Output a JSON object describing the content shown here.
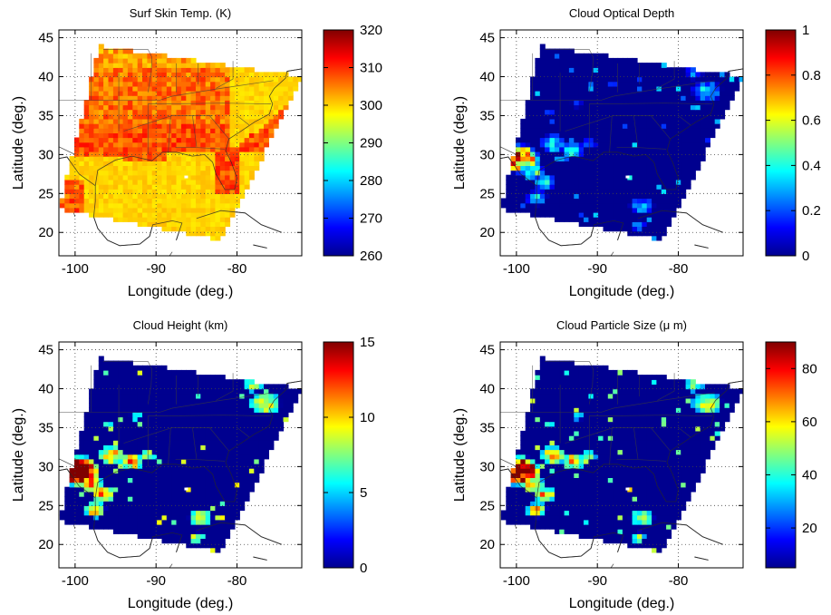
{
  "chart_data": [
    {
      "type": "heatmap",
      "title": "Surf Skin Temp. (K)",
      "xlabel": "Longitude (deg.)",
      "ylabel": "Latitude (deg.)",
      "xlim": [
        -102,
        -72
      ],
      "ylim": [
        17,
        46
      ],
      "xticks": [
        "-100",
        "-90",
        "-80"
      ],
      "yticks": [
        "20",
        "25",
        "30",
        "35",
        "40",
        "45"
      ],
      "colorbar": {
        "min": 260,
        "max": 320,
        "ticks": [
          "260",
          "270",
          "280",
          "290",
          "300",
          "310",
          "320"
        ]
      },
      "field": "temperature"
    },
    {
      "type": "heatmap",
      "title": "Cloud Optical Depth",
      "xlabel": "Longitude (deg.)",
      "ylabel": "Latitude (deg.)",
      "xlim": [
        -102,
        -72
      ],
      "ylim": [
        17,
        46
      ],
      "xticks": [
        "-100",
        "-90",
        "-80"
      ],
      "yticks": [
        "20",
        "25",
        "30",
        "35",
        "40",
        "45"
      ],
      "colorbar": {
        "min": 0,
        "max": 1,
        "ticks": [
          "0",
          "0.2",
          "0.4",
          "0.6",
          "0.8",
          "1"
        ]
      },
      "field": "cloud"
    },
    {
      "type": "heatmap",
      "title": "Cloud Height (km)",
      "xlabel": "Longitude (deg.)",
      "ylabel": "Latitude (deg.)",
      "xlim": [
        -102,
        -72
      ],
      "ylim": [
        17,
        46
      ],
      "xticks": [
        "-100",
        "-90",
        "-80"
      ],
      "yticks": [
        "20",
        "25",
        "30",
        "35",
        "40",
        "45"
      ],
      "colorbar": {
        "min": 0,
        "max": 15,
        "ticks": [
          "0",
          "5",
          "10",
          "15"
        ]
      },
      "field": "cloud"
    },
    {
      "type": "heatmap",
      "title": "Cloud Particle Size (μ m)",
      "xlabel": "Longitude (deg.)",
      "ylabel": "Latitude (deg.)",
      "xlim": [
        -102,
        -72
      ],
      "ylim": [
        17,
        46
      ],
      "xticks": [
        "-100",
        "-90",
        "-80"
      ],
      "yticks": [
        "20",
        "25",
        "30",
        "35",
        "40",
        "45"
      ],
      "colorbar": {
        "min": 5,
        "max": 90,
        "ticks": [
          "20",
          "40",
          "60",
          "80"
        ]
      },
      "field": "cloud"
    }
  ],
  "colors": {
    "background": "#ffffff",
    "nodata": "#00008f",
    "colormap": "jet"
  }
}
